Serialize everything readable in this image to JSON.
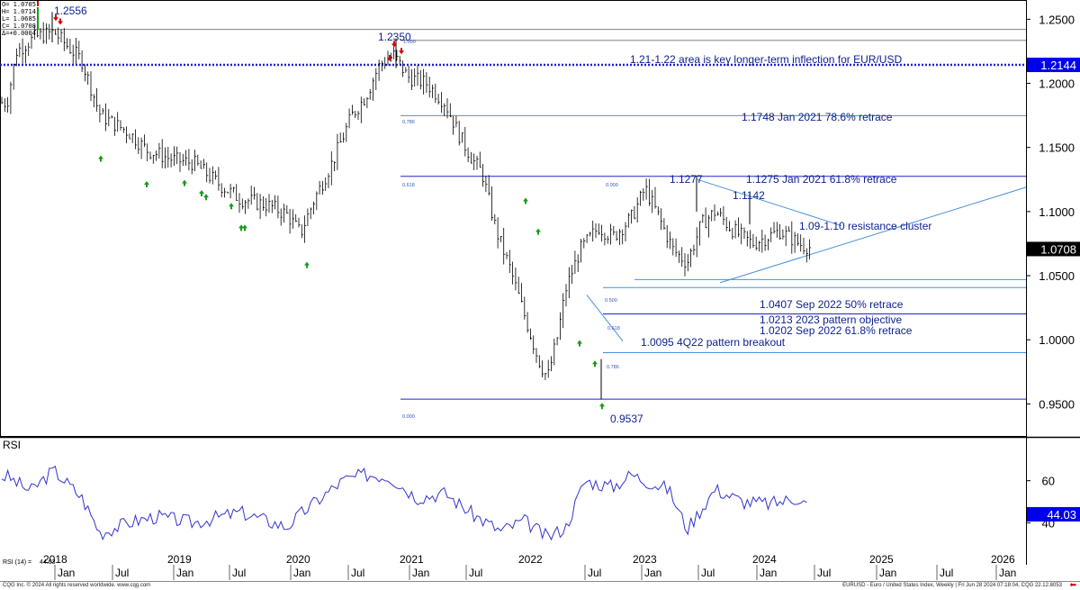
{
  "ohlc_box": {
    "open": "O= 1.0705",
    "high": "H= 1.0714",
    "low": "L= 1.0685",
    "close": "C= 1.0708",
    "change": "Δ=+0.0004"
  },
  "chart_data": {
    "type": "ohlc-bar",
    "x_tick_labels": [
      "2018",
      "Jan",
      "Jul",
      "2019",
      "Jan",
      "Jul",
      "2020",
      "Jan",
      "Jul",
      "2021",
      "Jan",
      "Jul",
      "2022",
      "Jul",
      "Jan",
      "2023",
      "Jul",
      "Jan",
      "2024",
      "Jul",
      "Jan",
      "2025",
      "Jul",
      "Jan",
      "2026"
    ],
    "price_axis": {
      "ticks": [
        "1.2500",
        "1.2000",
        "1.1500",
        "1.1000",
        "1.0500",
        "1.0000",
        "0.9500"
      ],
      "range": [
        0.925,
        1.265
      ]
    },
    "current_price_label": "1.0708",
    "level_label": "1.2144",
    "price_series": [
      {
        "t": 0,
        "v": 1.185
      },
      {
        "t": 0.1,
        "v": 1.225
      },
      {
        "t": 0.3,
        "v": 1.236
      },
      {
        "t": 0.5,
        "v": 1.24
      },
      {
        "t": 0.8,
        "v": 1.218
      },
      {
        "t": 1.0,
        "v": 1.175
      },
      {
        "t": 1.3,
        "v": 1.162
      },
      {
        "t": 1.5,
        "v": 1.148
      },
      {
        "t": 1.8,
        "v": 1.14
      },
      {
        "t": 2.0,
        "v": 1.138
      },
      {
        "t": 2.3,
        "v": 1.12
      },
      {
        "t": 2.5,
        "v": 1.11
      },
      {
        "t": 2.8,
        "v": 1.105
      },
      {
        "t": 3.0,
        "v": 1.098
      },
      {
        "t": 3.15,
        "v": 1.083
      },
      {
        "t": 3.3,
        "v": 1.11
      },
      {
        "t": 3.5,
        "v": 1.14
      },
      {
        "t": 3.7,
        "v": 1.175
      },
      {
        "t": 3.85,
        "v": 1.19
      },
      {
        "t": 4.0,
        "v": 1.215
      },
      {
        "t": 4.15,
        "v": 1.222
      },
      {
        "t": 4.3,
        "v": 1.205
      },
      {
        "t": 4.5,
        "v": 1.2
      },
      {
        "t": 4.7,
        "v": 1.185
      },
      {
        "t": 4.85,
        "v": 1.16
      },
      {
        "t": 5.0,
        "v": 1.14
      },
      {
        "t": 5.1,
        "v": 1.13
      },
      {
        "t": 5.25,
        "v": 1.085
      },
      {
        "t": 5.4,
        "v": 1.055
      },
      {
        "t": 5.55,
        "v": 1.02
      },
      {
        "t": 5.7,
        "v": 0.985
      },
      {
        "t": 5.8,
        "v": 0.97
      },
      {
        "t": 5.9,
        "v": 1.0
      },
      {
        "t": 6.0,
        "v": 1.04
      },
      {
        "t": 6.15,
        "v": 1.07
      },
      {
        "t": 6.35,
        "v": 1.088
      },
      {
        "t": 6.5,
        "v": 1.08
      },
      {
        "t": 6.7,
        "v": 1.095
      },
      {
        "t": 6.85,
        "v": 1.118
      },
      {
        "t": 7.0,
        "v": 1.095
      },
      {
        "t": 7.15,
        "v": 1.07
      },
      {
        "t": 7.3,
        "v": 1.06
      },
      {
        "t": 7.45,
        "v": 1.09
      },
      {
        "t": 7.6,
        "v": 1.1
      },
      {
        "t": 7.8,
        "v": 1.085
      },
      {
        "t": 8.0,
        "v": 1.075
      },
      {
        "t": 8.15,
        "v": 1.08
      },
      {
        "t": 8.3,
        "v": 1.085
      },
      {
        "t": 8.5,
        "v": 1.075
      },
      {
        "t": 8.7,
        "v": 1.07
      }
    ],
    "rsi": {
      "label": "RSI",
      "period_label": "RSI (14) =",
      "period_value": "44.03",
      "axis_ticks": [
        "60",
        "40"
      ],
      "value_label": "44.03",
      "series": [
        {
          "t": 0,
          "v": 62
        },
        {
          "t": 0.25,
          "v": 55
        },
        {
          "t": 0.5,
          "v": 65
        },
        {
          "t": 0.8,
          "v": 52
        },
        {
          "t": 1.0,
          "v": 35
        },
        {
          "t": 1.3,
          "v": 40
        },
        {
          "t": 1.6,
          "v": 43
        },
        {
          "t": 2.0,
          "v": 40
        },
        {
          "t": 2.5,
          "v": 45
        },
        {
          "t": 3.0,
          "v": 38
        },
        {
          "t": 3.2,
          "v": 46
        },
        {
          "t": 3.6,
          "v": 60
        },
        {
          "t": 3.85,
          "v": 63
        },
        {
          "t": 4.1,
          "v": 62
        },
        {
          "t": 4.4,
          "v": 52
        },
        {
          "t": 4.7,
          "v": 54
        },
        {
          "t": 5.0,
          "v": 44
        },
        {
          "t": 5.3,
          "v": 36
        },
        {
          "t": 5.55,
          "v": 41
        },
        {
          "t": 5.8,
          "v": 33
        },
        {
          "t": 6.0,
          "v": 38
        },
        {
          "t": 6.2,
          "v": 60
        },
        {
          "t": 6.5,
          "v": 57
        },
        {
          "t": 6.7,
          "v": 63
        },
        {
          "t": 6.85,
          "v": 60
        },
        {
          "t": 7.1,
          "v": 56
        },
        {
          "t": 7.3,
          "v": 37
        },
        {
          "t": 7.6,
          "v": 56
        },
        {
          "t": 7.9,
          "v": 50
        },
        {
          "t": 8.2,
          "v": 49
        },
        {
          "t": 8.5,
          "v": 52
        },
        {
          "t": 8.7,
          "v": 44
        }
      ]
    },
    "annotations": [
      {
        "id": "hi-1.2556",
        "text": "1.2556"
      },
      {
        "id": "hi-1.2350",
        "text": "1.2350"
      },
      {
        "id": "inflection",
        "text": "1.21-1.22 area is key longer-term inflection for EUR/USD"
      },
      {
        "id": "retr-786",
        "text": "1.1748 Jan 2021 78.6% retrace"
      },
      {
        "id": "hi-1.1277",
        "text": "1.1277"
      },
      {
        "id": "retr-618",
        "text": "1.1275 Jan 2021 61.8% retrace"
      },
      {
        "id": "hi-1.1142",
        "text": "1.1142"
      },
      {
        "id": "resistance",
        "text": "1.09-1.10 resistance cluster"
      },
      {
        "id": "retr-500",
        "text": "1.0407 Sep 2022 50% retrace"
      },
      {
        "id": "objective",
        "text": "1.0213 2023 pattern objective"
      },
      {
        "id": "retr-2022-618",
        "text": "1.0202 Sep 2022 61.8% retrace"
      },
      {
        "id": "breakout",
        "text": "1.0095 4Q22 pattern breakout"
      },
      {
        "id": "lo-0.9537",
        "text": "0.9537"
      }
    ],
    "fib_small_labels": [
      "1.000",
      "0.786",
      "0.618",
      "0.000",
      "0.500",
      "0.618",
      "0.786",
      "0.000"
    ]
  },
  "footer": {
    "left": "CQG Inc. © 2024 All rights reserved worldwide. www.cqg.com",
    "right": "EURUSD - Euro / United States Index, Weekly | Fri Jun 28 2024 07:18:04, CQG 22.12.8053"
  },
  "colors": {
    "price": "#000000",
    "annotation_text": "#0a1f8f",
    "trend_line": "#4a90d9",
    "level_line": "#2222cc",
    "rsi_line": "#3333cc",
    "up_arrow": "#1a9a1a",
    "down_arrow": "#d00000",
    "axis_label_bg": "#0000ee"
  }
}
